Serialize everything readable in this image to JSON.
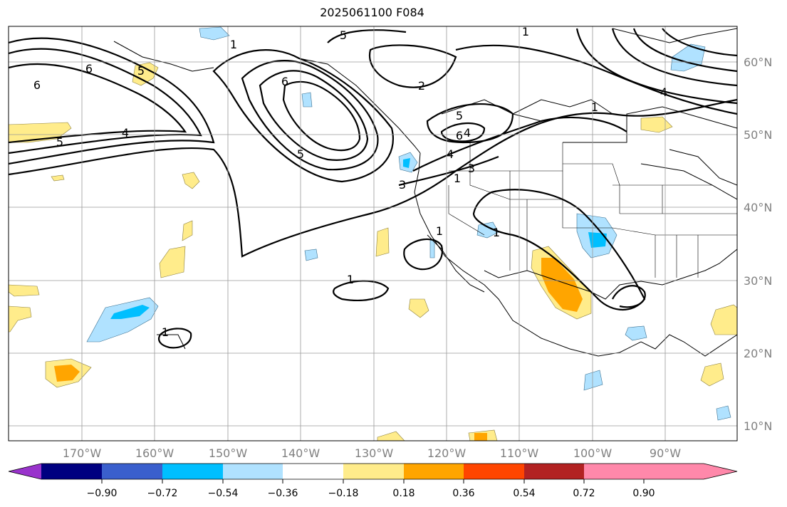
{
  "title": "2025061100 F084",
  "map": {
    "lat_labels": [
      "60°N",
      "50°N",
      "40°N",
      "30°N",
      "20°N",
      "10°N"
    ],
    "lon_labels": [
      "170°W",
      "160°W",
      "150°W",
      "140°W",
      "130°W",
      "120°W",
      "110°W",
      "100°W",
      "90°W"
    ],
    "contour_labels": [
      "5",
      "1",
      "2",
      "6",
      "6",
      "4",
      "5",
      "5",
      "4",
      "5",
      "6",
      "4",
      "3",
      "1",
      "1",
      "1",
      "1",
      "1",
      "4",
      "6",
      "5",
      "1",
      "3",
      "1"
    ],
    "grid": true,
    "line_color": "#000000"
  },
  "colorbar": {
    "colors": [
      "#9933cc",
      "#000080",
      "#3a5fcd",
      "#00bfff",
      "#b0e2ff",
      "#ffffff",
      "#ffec8b",
      "#ffa500",
      "#ff4500",
      "#b22222",
      "#ff88aa"
    ],
    "tick_labels": [
      "−0.90",
      "−0.72",
      "−0.54",
      "−0.36",
      "−0.18",
      "0.18",
      "0.36",
      "0.54",
      "0.72",
      "0.90"
    ]
  }
}
